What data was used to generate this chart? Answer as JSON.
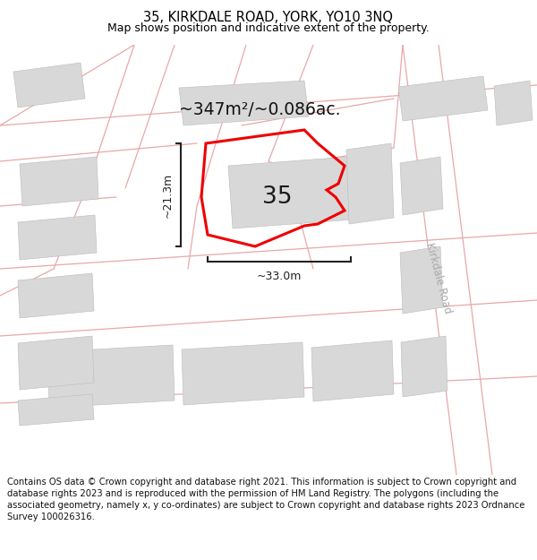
{
  "title_line1": "35, KIRKDALE ROAD, YORK, YO10 3NQ",
  "title_line2": "Map shows position and indicative extent of the property.",
  "footer_text": "Contains OS data © Crown copyright and database right 2021. This information is subject to Crown copyright and database rights 2023 and is reproduced with the permission of HM Land Registry. The polygons (including the associated geometry, namely x, y co-ordinates) are subject to Crown copyright and database rights 2023 Ordnance Survey 100026316.",
  "area_label": "~347m²/~0.086ac.",
  "number_label": "35",
  "width_label": "~33.0m",
  "height_label": "~21.3m",
  "road_label": "Kirkdale Road",
  "map_bg": "#f7f5f2",
  "building_fill": "#d8d8d8",
  "building_edge": "#bbbbbb",
  "road_line_color": "#e8a8a8",
  "property_outline_color": "#ee0000",
  "dim_line_color": "#222222",
  "title_color": "#000000",
  "footer_color": "#111111",
  "header_bg": "#ffffff",
  "footer_bg": "#ffffff",
  "road_label_color": "#aaaaaa"
}
